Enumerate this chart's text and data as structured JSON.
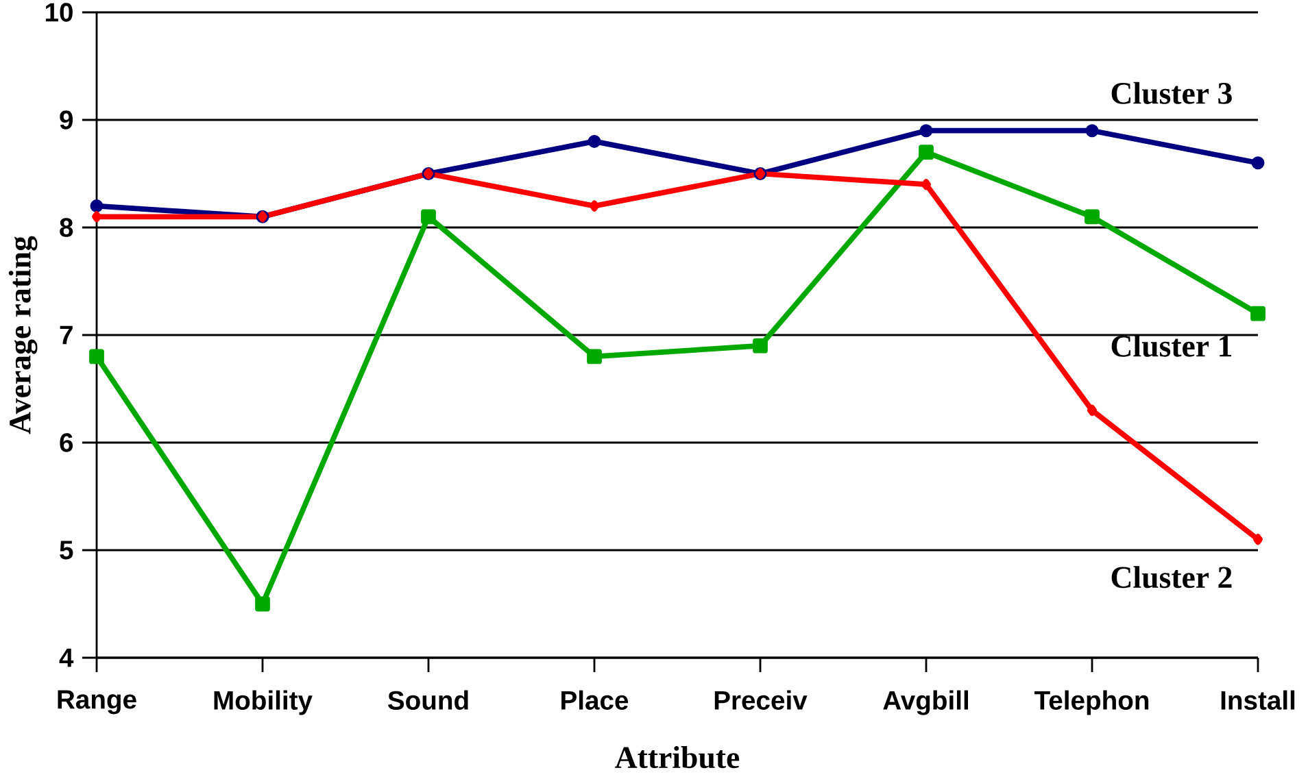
{
  "chart_data": {
    "type": "line",
    "xlabel": "Attribute",
    "ylabel": "Average rating",
    "categories": [
      "Range",
      "Mobility",
      "Sound",
      "Place",
      "Preceiv",
      "Avgbill",
      "Telephon",
      "Install"
    ],
    "series": [
      {
        "name": "Cluster 3",
        "color": "#000080",
        "marker": "circle",
        "values": [
          8.2,
          8.1,
          8.5,
          8.8,
          8.5,
          8.9,
          8.9,
          8.6
        ]
      },
      {
        "name": "Cluster 1",
        "color": "#00a800",
        "marker": "square",
        "values": [
          6.8,
          4.5,
          8.1,
          6.8,
          6.9,
          8.7,
          8.1,
          7.2
        ]
      },
      {
        "name": "Cluster 2",
        "color": "#ff0000",
        "marker": "diamond",
        "values": [
          8.1,
          8.1,
          8.5,
          8.2,
          8.5,
          8.4,
          6.3,
          5.1
        ]
      }
    ],
    "ylim": [
      4,
      10
    ],
    "yticks": [
      4,
      5,
      6,
      7,
      8,
      9,
      10
    ],
    "grid": "y",
    "line_style": "solid"
  }
}
